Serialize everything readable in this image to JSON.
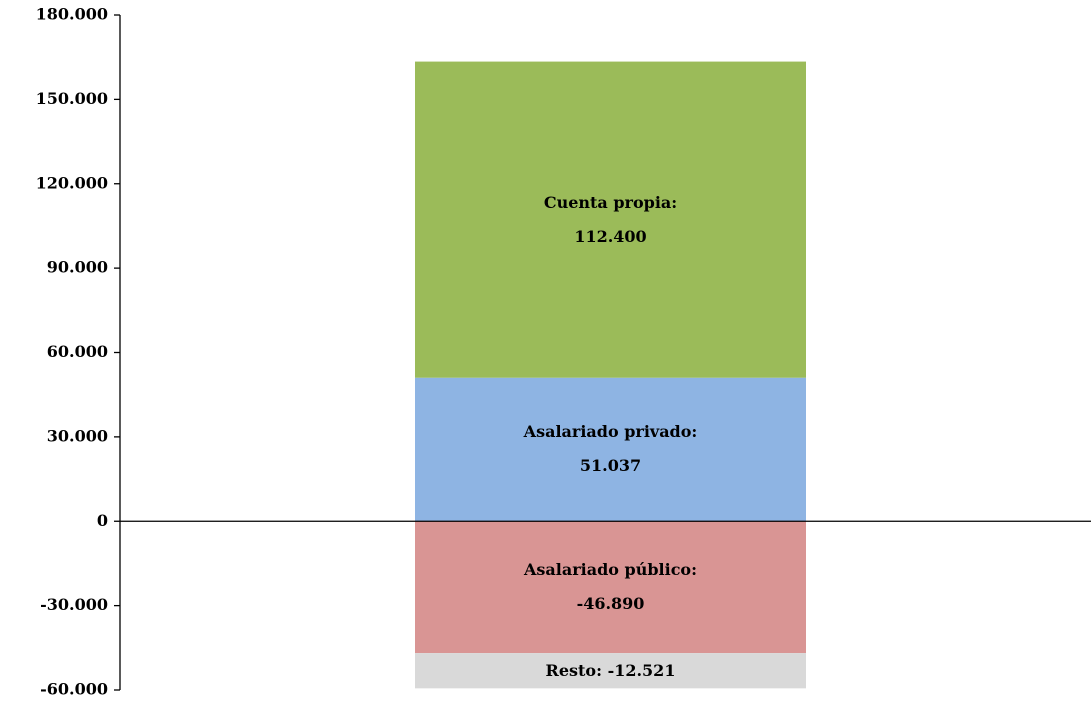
{
  "chart_data": {
    "type": "bar",
    "stacked": true,
    "categories": [
      null
    ],
    "series": [
      {
        "name": "Asalariado privado",
        "color": "#8eb4e3",
        "values": [
          51037
        ],
        "value_labels": [
          "Asalariado privado: 51.037"
        ]
      },
      {
        "name": "Cuenta propia",
        "color": "#9bbb59",
        "values": [
          112400
        ],
        "value_labels": [
          "Cuenta propia: 112.400"
        ]
      },
      {
        "name": "Asalariado público",
        "color": "#d99594",
        "values": [
          -46890
        ],
        "value_labels": [
          "Asalariado público: -46.890"
        ]
      },
      {
        "name": "Resto",
        "color": "#d9d9d9",
        "values": [
          -12521
        ],
        "value_labels": [
          "Resto: -12.521"
        ]
      }
    ],
    "ylim": [
      -60000,
      180000
    ],
    "yticks": [
      {
        "value": -60000,
        "label": "-60.000"
      },
      {
        "value": -30000,
        "label": "-30.000"
      },
      0,
      {
        "value": 30000,
        "label": "30.000"
      },
      {
        "value": 60000,
        "label": "60.000"
      },
      {
        "value": 90000,
        "label": "90.000"
      },
      {
        "value": 120000,
        "label": "120.000"
      },
      {
        "value": 150000,
        "label": "150.000"
      },
      {
        "value": 180000,
        "label": "180.000"
      }
    ],
    "grid": false
  }
}
